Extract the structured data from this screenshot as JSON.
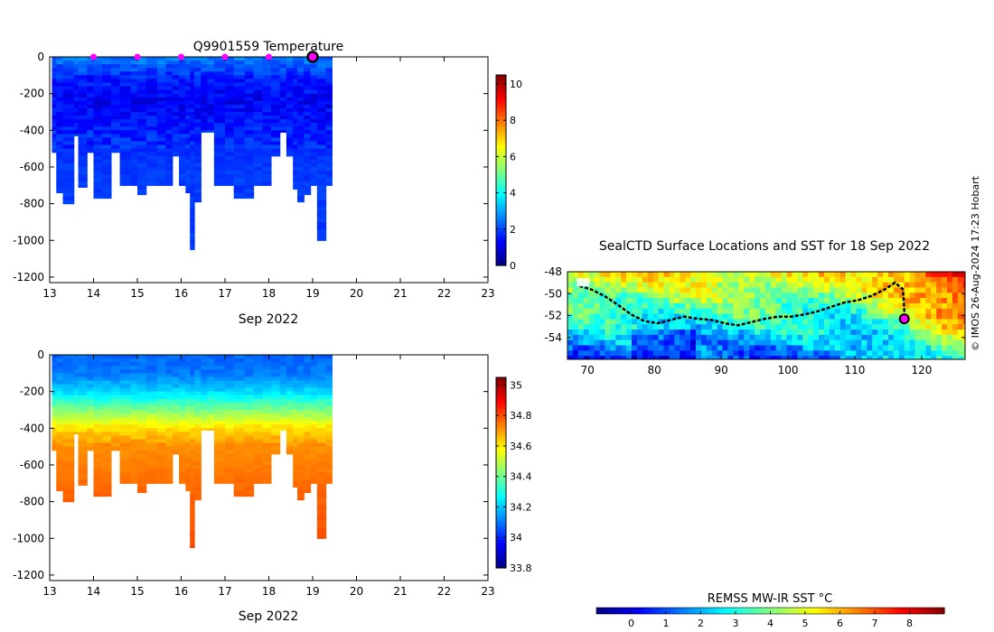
{
  "colors": {
    "jet": [
      "#000080",
      "#0000ff",
      "#0080ff",
      "#00ffff",
      "#80ff80",
      "#ffff00",
      "#ff8000",
      "#ff0000",
      "#800000"
    ],
    "marker": "#ff00ff",
    "track": "#000000"
  },
  "chart_data": [
    {
      "type": "heatmap",
      "title": "Q9901559  Temperature",
      "xlabel": "Sep 2022",
      "ylabel": "",
      "xlim": [
        13,
        23
      ],
      "ylim": [
        -1230,
        0
      ],
      "x_ticks": [
        "13",
        "14",
        "15",
        "16",
        "17",
        "18",
        "19",
        "20",
        "21",
        "22",
        "23"
      ],
      "y_ticks": [
        "0",
        "-200",
        "-400",
        "-600",
        "-800",
        "-1000",
        "-1200"
      ],
      "colorbar": {
        "min": 0,
        "max": 10.5,
        "ticks": [
          "0",
          "2",
          "4",
          "6",
          "8",
          "10"
        ]
      },
      "surface_markers_x": [
        14,
        15,
        16,
        17,
        18
      ],
      "last_surface_x": 19,
      "profiles": [
        {
          "x": 13.05,
          "depth": -520
        },
        {
          "x": 13.15,
          "depth": -740
        },
        {
          "x": 13.3,
          "depth": -800
        },
        {
          "x": 13.55,
          "depth": -430
        },
        {
          "x": 13.65,
          "depth": -710
        },
        {
          "x": 13.85,
          "depth": -520
        },
        {
          "x": 14.0,
          "depth": -770
        },
        {
          "x": 14.2,
          "depth": -770
        },
        {
          "x": 14.4,
          "depth": -520
        },
        {
          "x": 14.6,
          "depth": -700
        },
        {
          "x": 14.85,
          "depth": -700
        },
        {
          "x": 15.0,
          "depth": -750
        },
        {
          "x": 15.2,
          "depth": -700
        },
        {
          "x": 15.45,
          "depth": -700
        },
        {
          "x": 15.65,
          "depth": -700
        },
        {
          "x": 15.8,
          "depth": -540
        },
        {
          "x": 15.95,
          "depth": -700
        },
        {
          "x": 16.1,
          "depth": -740
        },
        {
          "x": 16.2,
          "depth": -1050
        },
        {
          "x": 16.3,
          "depth": -790
        },
        {
          "x": 16.45,
          "depth": -410
        },
        {
          "x": 16.6,
          "depth": -410
        },
        {
          "x": 16.75,
          "depth": -700
        },
        {
          "x": 17.0,
          "depth": -700
        },
        {
          "x": 17.2,
          "depth": -770
        },
        {
          "x": 17.45,
          "depth": -770
        },
        {
          "x": 17.65,
          "depth": -700
        },
        {
          "x": 17.85,
          "depth": -700
        },
        {
          "x": 18.05,
          "depth": -540
        },
        {
          "x": 18.25,
          "depth": -410
        },
        {
          "x": 18.4,
          "depth": -540
        },
        {
          "x": 18.55,
          "depth": -720
        },
        {
          "x": 18.65,
          "depth": -790
        },
        {
          "x": 18.8,
          "depth": -750
        },
        {
          "x": 18.95,
          "depth": -700
        },
        {
          "x": 19.1,
          "depth": -1000
        },
        {
          "x": 19.3,
          "depth": -700
        }
      ],
      "temperature_profile": [
        {
          "depth": 0,
          "value": 2.6
        },
        {
          "depth": -60,
          "value": 2.1
        },
        {
          "depth": -120,
          "value": 1.6
        },
        {
          "depth": -250,
          "value": 1.2
        },
        {
          "depth": -400,
          "value": 1.6
        },
        {
          "depth": -600,
          "value": 1.9
        },
        {
          "depth": -1050,
          "value": 1.9
        }
      ]
    },
    {
      "type": "heatmap",
      "title": "",
      "xlabel": "Sep 2022",
      "ylabel": "",
      "xlim": [
        13,
        23
      ],
      "ylim": [
        -1230,
        0
      ],
      "x_ticks": [
        "13",
        "14",
        "15",
        "16",
        "17",
        "18",
        "19",
        "20",
        "21",
        "22",
        "23"
      ],
      "y_ticks": [
        "0",
        "-200",
        "-400",
        "-600",
        "-800",
        "-1000",
        "-1200"
      ],
      "colorbar": {
        "min": 33.8,
        "max": 35.05,
        "ticks": [
          "33.8",
          "34",
          "34.2",
          "34.4",
          "34.6",
          "34.8",
          "35"
        ]
      },
      "salinity_profile": [
        {
          "depth": 0,
          "value": 34.08
        },
        {
          "depth": -100,
          "value": 34.1
        },
        {
          "depth": -200,
          "value": 34.22
        },
        {
          "depth": -300,
          "value": 34.42
        },
        {
          "depth": -400,
          "value": 34.62
        },
        {
          "depth": -500,
          "value": 34.72
        },
        {
          "depth": -650,
          "value": 34.75
        },
        {
          "depth": -800,
          "value": 34.78
        },
        {
          "depth": -1050,
          "value": 34.8
        }
      ]
    },
    {
      "type": "heatmap",
      "title": "SealCTD Surface Locations and SST for 18 Sep 2022",
      "xlabel": "",
      "ylabel": "",
      "xlim": [
        67,
        126.5
      ],
      "ylim": [
        -56,
        -48
      ],
      "x_ticks": [
        "70",
        "80",
        "90",
        "100",
        "110",
        "120"
      ],
      "y_ticks": [
        "-48",
        "-50",
        "-52",
        "-54"
      ],
      "colorbar": {
        "label": "REMSS MW-IR SST °C",
        "min": -1,
        "max": 9,
        "ticks": [
          "0",
          "1",
          "2",
          "3",
          "4",
          "5",
          "6",
          "7",
          "8"
        ]
      },
      "track": [
        [
          68.8,
          -49.3
        ],
        [
          70.5,
          -49.6
        ],
        [
          72.5,
          -50.2
        ],
        [
          74.5,
          -51.0
        ],
        [
          76.5,
          -51.9
        ],
        [
          78.5,
          -52.5
        ],
        [
          80.5,
          -52.7
        ],
        [
          82.5,
          -52.4
        ],
        [
          84.5,
          -52.1
        ],
        [
          86.5,
          -52.3
        ],
        [
          88.5,
          -52.4
        ],
        [
          90.5,
          -52.7
        ],
        [
          92.5,
          -52.9
        ],
        [
          94.5,
          -52.6
        ],
        [
          96.5,
          -52.3
        ],
        [
          98.5,
          -52.1
        ],
        [
          100.5,
          -52.1
        ],
        [
          102.5,
          -51.9
        ],
        [
          104.5,
          -51.6
        ],
        [
          106.5,
          -51.2
        ],
        [
          108.5,
          -50.8
        ],
        [
          110.5,
          -50.6
        ],
        [
          112.5,
          -50.2
        ],
        [
          114.5,
          -49.6
        ],
        [
          116.0,
          -49.0
        ],
        [
          117.2,
          -49.6
        ],
        [
          117.3,
          -50.5
        ],
        [
          117.4,
          -51.5
        ],
        [
          117.4,
          -52.3
        ]
      ],
      "last_position": [
        117.4,
        -52.3
      ],
      "stamp": "© IMOS 26-Aug-2024 17:23 Hobart"
    }
  ]
}
